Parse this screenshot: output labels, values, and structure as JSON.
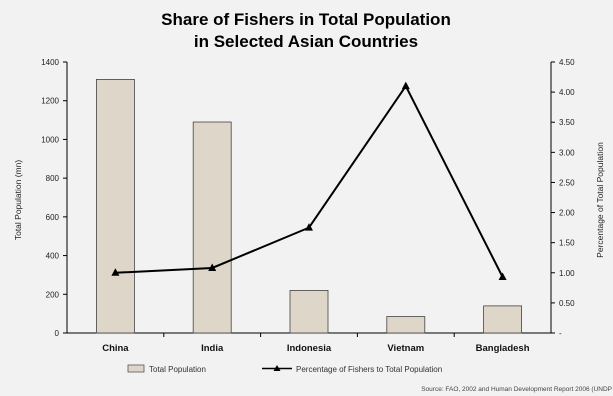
{
  "chart_data": {
    "type": "bar+line",
    "title_lines": [
      "Share of Fishers in Total Population",
      "in Selected Asian Countries"
    ],
    "categories": [
      "China",
      "India",
      "Indonesia",
      "Vietnam",
      "Bangladesh"
    ],
    "series": [
      {
        "name": "Total Population",
        "type": "bar",
        "axis": "left",
        "values": [
          1310,
          1090,
          220,
          85,
          140
        ],
        "color": "#ded6c8"
      },
      {
        "name": "Percentage of Fishers to Total Population",
        "type": "line",
        "axis": "right",
        "values": [
          1.0,
          1.08,
          1.75,
          4.1,
          0.93
        ],
        "color": "#000000"
      }
    ],
    "ylabel_left": "Total Population (mn)",
    "ylabel_right": "Percentage of Total Population",
    "ylim_left": [
      0,
      1400
    ],
    "yticks_left": [
      "0",
      "200",
      "400",
      "600",
      "800",
      "1000",
      "1200",
      "1400"
    ],
    "ylim_right": [
      0,
      4.5
    ],
    "yticks_right": [
      "-",
      "0.50",
      "1.00",
      "1.50",
      "2.00",
      "2.50",
      "3.00",
      "3.50",
      "4.00",
      "4.50"
    ],
    "grid": false,
    "legend_position": "bottom",
    "source": "Source: FAO, 2002 and Human Development Report 2006 (UNDP"
  }
}
